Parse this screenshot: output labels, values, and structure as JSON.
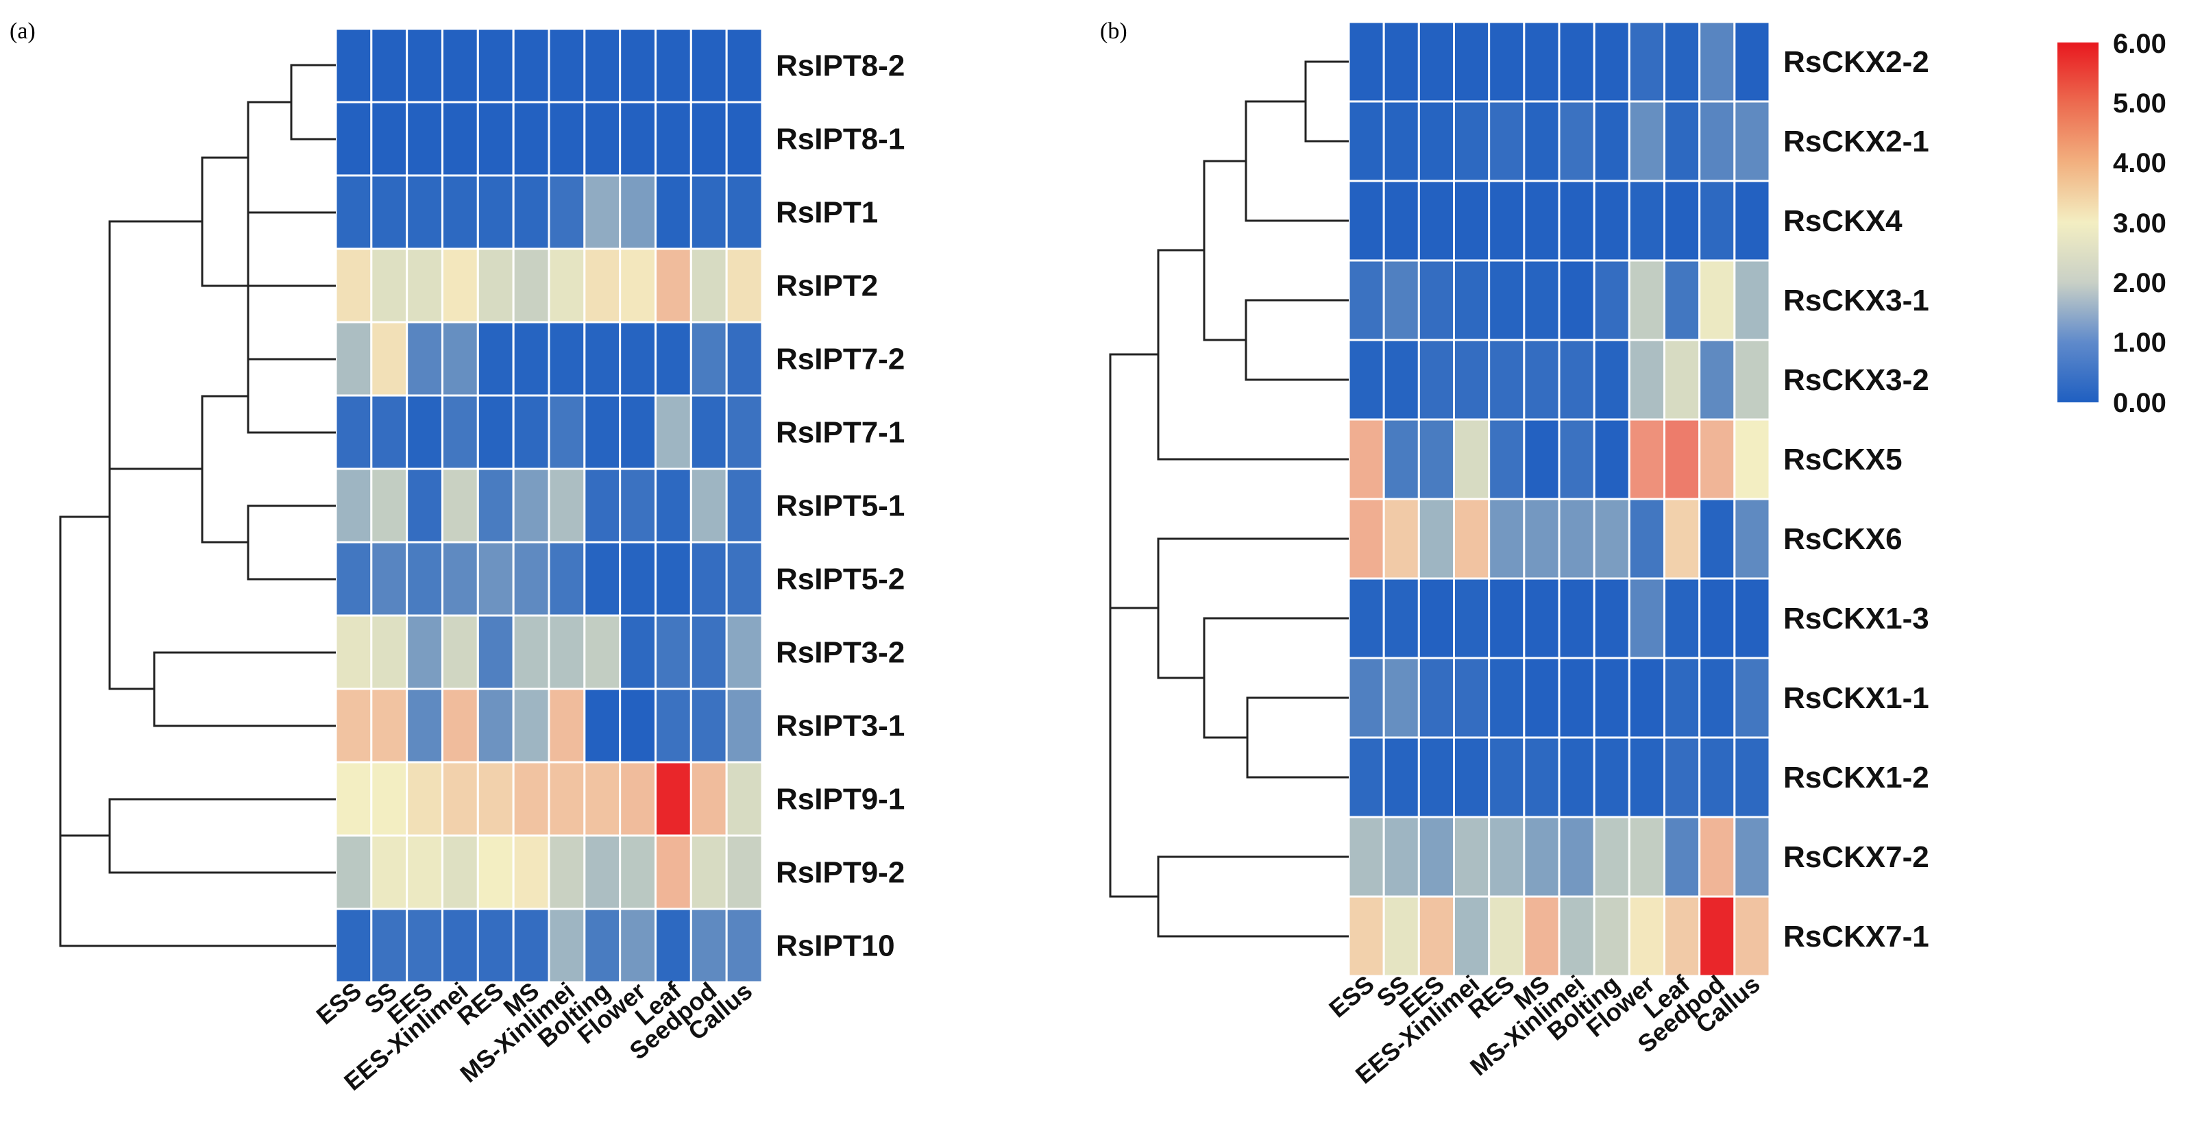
{
  "chart_data": [
    {
      "type": "heatmap",
      "panel_label": "(a)",
      "rows": [
        "RsIPT8-2",
        "RsIPT8-1",
        "RsIPT1",
        "RsIPT2",
        "RsIPT7-2",
        "RsIPT7-1",
        "RsIPT5-1",
        "RsIPT5-2",
        "RsIPT3-2",
        "RsIPT3-1",
        "RsIPT9-1",
        "RsIPT9-2",
        "RsIPT10"
      ],
      "columns": [
        "ESS",
        "SS",
        "EES",
        "EES-Xinlimei",
        "RES",
        "MS",
        "MS-Xinlimei",
        "Bolting",
        "Flower",
        "Leaf",
        "Seedpod",
        "Callus"
      ],
      "values": [
        [
          0.05,
          0.05,
          0.05,
          0.05,
          0.05,
          0.05,
          0.05,
          0.05,
          0.05,
          0.05,
          0.05,
          0.05
        ],
        [
          0.05,
          0.05,
          0.05,
          0.05,
          0.05,
          0.05,
          0.05,
          0.05,
          0.05,
          0.05,
          0.05,
          0.05
        ],
        [
          0.2,
          0.2,
          0.2,
          0.2,
          0.2,
          0.2,
          0.4,
          1.6,
          1.3,
          0.1,
          0.2,
          0.2
        ],
        [
          3.2,
          2.7,
          2.7,
          3.1,
          2.6,
          2.4,
          2.8,
          3.2,
          3.1,
          3.7,
          2.6,
          3.2
        ],
        [
          2.0,
          3.2,
          0.8,
          1.0,
          0.1,
          0.1,
          0.1,
          0.1,
          0.1,
          0.1,
          0.6,
          0.3
        ],
        [
          0.3,
          0.3,
          0.1,
          0.5,
          0.1,
          0.2,
          0.5,
          0.1,
          0.1,
          1.8,
          0.2,
          0.4
        ],
        [
          1.8,
          2.3,
          0.3,
          2.4,
          0.6,
          1.3,
          2.0,
          0.3,
          0.4,
          0.2,
          1.8,
          0.4
        ],
        [
          0.5,
          0.8,
          0.6,
          0.9,
          1.1,
          0.9,
          0.5,
          0.1,
          0.1,
          0.1,
          0.3,
          0.4
        ],
        [
          2.8,
          2.7,
          1.3,
          2.5,
          0.7,
          2.1,
          2.1,
          2.3,
          0.2,
          0.5,
          0.4,
          1.5
        ],
        [
          3.6,
          3.6,
          0.9,
          3.7,
          1.1,
          1.8,
          3.7,
          0.05,
          0.05,
          0.4,
          0.4,
          1.2
        ],
        [
          3.0,
          3.0,
          3.2,
          3.4,
          3.4,
          3.6,
          3.6,
          3.6,
          3.7,
          5.8,
          3.7,
          2.6
        ],
        [
          2.2,
          2.9,
          2.9,
          2.7,
          3.0,
          3.1,
          2.4,
          2.0,
          2.2,
          3.8,
          2.6,
          2.4
        ],
        [
          0.2,
          0.4,
          0.4,
          0.3,
          0.3,
          0.3,
          1.8,
          0.6,
          1.2,
          0.2,
          0.9,
          0.8
        ]
      ],
      "color_scale": {
        "min": 0.0,
        "max": 6.0,
        "low": "#1f5fc1",
        "mid": "#f3eec2",
        "high": "#e8181f"
      }
    },
    {
      "type": "heatmap",
      "panel_label": "(b)",
      "rows": [
        "RsCKX2-2",
        "RsCKX2-1",
        "RsCKX4",
        "RsCKX3-1",
        "RsCKX3-2",
        "RsCKX5",
        "RsCKX6",
        "RsCKX1-3",
        "RsCKX1-1",
        "RsCKX1-2",
        "RsCKX7-2",
        "RsCKX7-1"
      ],
      "columns": [
        "ESS",
        "SS",
        "EES",
        "EES-Xinlimei",
        "RES",
        "MS",
        "MS-Xinlimei",
        "Bolting",
        "Flower",
        "Leaf",
        "Seedpod",
        "Callus"
      ],
      "values": [
        [
          0.05,
          0.05,
          0.05,
          0.05,
          0.05,
          0.05,
          0.05,
          0.05,
          0.3,
          0.1,
          0.8,
          0.05
        ],
        [
          0.1,
          0.1,
          0.1,
          0.2,
          0.3,
          0.1,
          0.4,
          0.1,
          1.0,
          0.2,
          0.8,
          0.9
        ],
        [
          0.05,
          0.05,
          0.05,
          0.05,
          0.05,
          0.05,
          0.05,
          0.05,
          0.1,
          0.05,
          0.2,
          0.05
        ],
        [
          0.4,
          0.7,
          0.3,
          0.2,
          0.1,
          0.1,
          0.05,
          0.3,
          2.3,
          0.5,
          2.9,
          1.9
        ],
        [
          0.1,
          0.1,
          0.3,
          0.3,
          0.3,
          0.3,
          0.3,
          0.1,
          2.0,
          2.6,
          0.9,
          2.3
        ],
        [
          3.9,
          0.6,
          0.6,
          2.6,
          0.4,
          0.05,
          0.4,
          0.05,
          4.3,
          4.6,
          3.8,
          3.0
        ],
        [
          3.9,
          3.5,
          1.8,
          3.6,
          1.2,
          1.2,
          1.2,
          1.3,
          0.5,
          3.4,
          0.1,
          0.9
        ],
        [
          0.1,
          0.1,
          0.05,
          0.1,
          0.05,
          0.05,
          0.05,
          0.05,
          0.8,
          0.1,
          0.05,
          0.05
        ],
        [
          0.7,
          1.0,
          0.3,
          0.3,
          0.1,
          0.05,
          0.05,
          0.05,
          0.05,
          0.2,
          0.1,
          0.5
        ],
        [
          0.2,
          0.1,
          0.1,
          0.1,
          0.2,
          0.2,
          0.1,
          0.1,
          0.1,
          0.3,
          0.2,
          0.2
        ],
        [
          2.0,
          1.8,
          1.4,
          2.0,
          1.8,
          1.4,
          1.2,
          2.2,
          2.3,
          0.8,
          3.8,
          1.1
        ],
        [
          3.4,
          2.8,
          3.6,
          1.9,
          2.8,
          3.8,
          2.1,
          2.4,
          3.1,
          3.5,
          5.8,
          3.6
        ]
      ],
      "color_scale": {
        "min": 0.0,
        "max": 6.0,
        "low": "#1f5fc1",
        "mid": "#f3eec2",
        "high": "#e8181f"
      }
    }
  ],
  "legend": {
    "ticks": [
      "6.00",
      "5.00",
      "4.00",
      "3.00",
      "2.00",
      "1.00",
      "0.00"
    ],
    "colors": [
      "#1f5fc1",
      "#7fa3d4",
      "#c9d0c6",
      "#f3eec2",
      "#f2b07f",
      "#e8181f"
    ]
  }
}
